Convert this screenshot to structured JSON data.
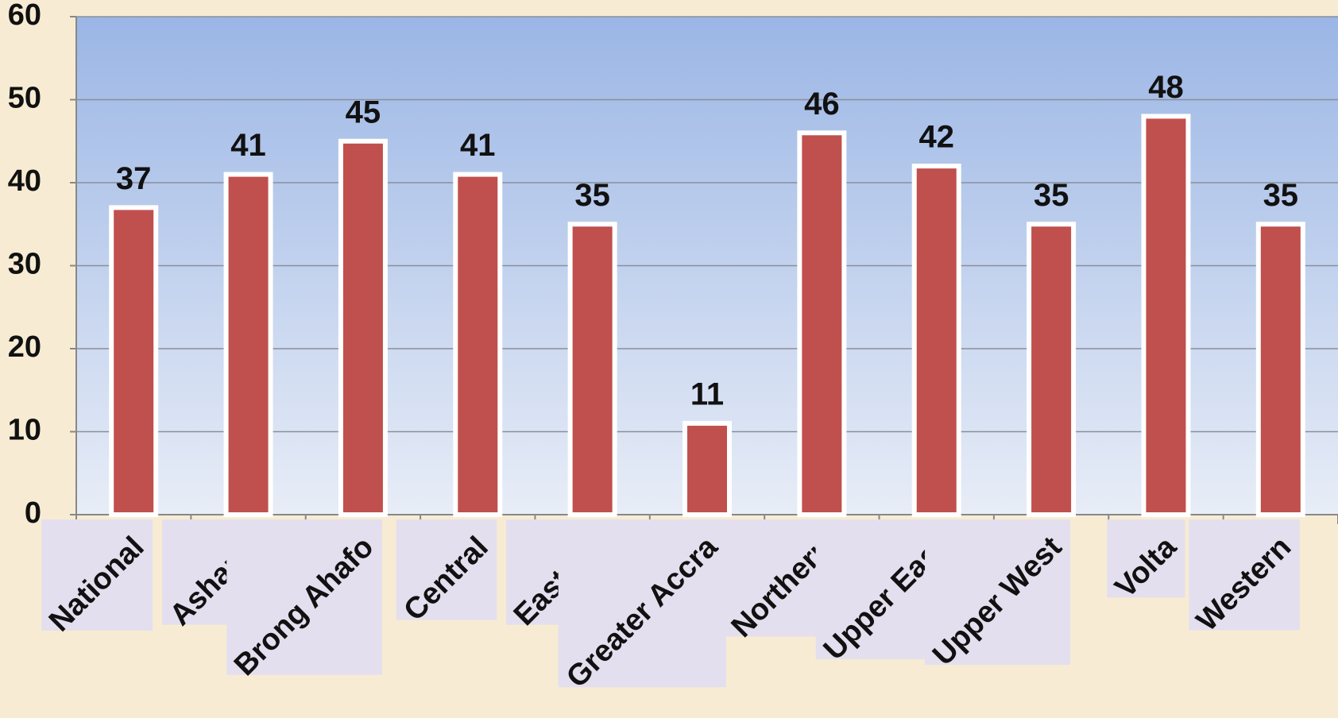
{
  "chart_data": {
    "type": "bar",
    "categories": [
      "National",
      "Ashanti",
      "Brong Ahafo",
      "Central",
      "Eastern",
      "Greater Accra",
      "Northern",
      "Upper East",
      "Upper West",
      "Volta",
      "Western"
    ],
    "values": [
      37,
      41,
      45,
      41,
      35,
      11,
      46,
      42,
      35,
      48,
      35
    ],
    "color": "#c0504d",
    "ylim": [
      0,
      60
    ],
    "yticks": [
      0,
      10,
      20,
      30,
      40,
      50,
      60
    ],
    "grid": true
  }
}
